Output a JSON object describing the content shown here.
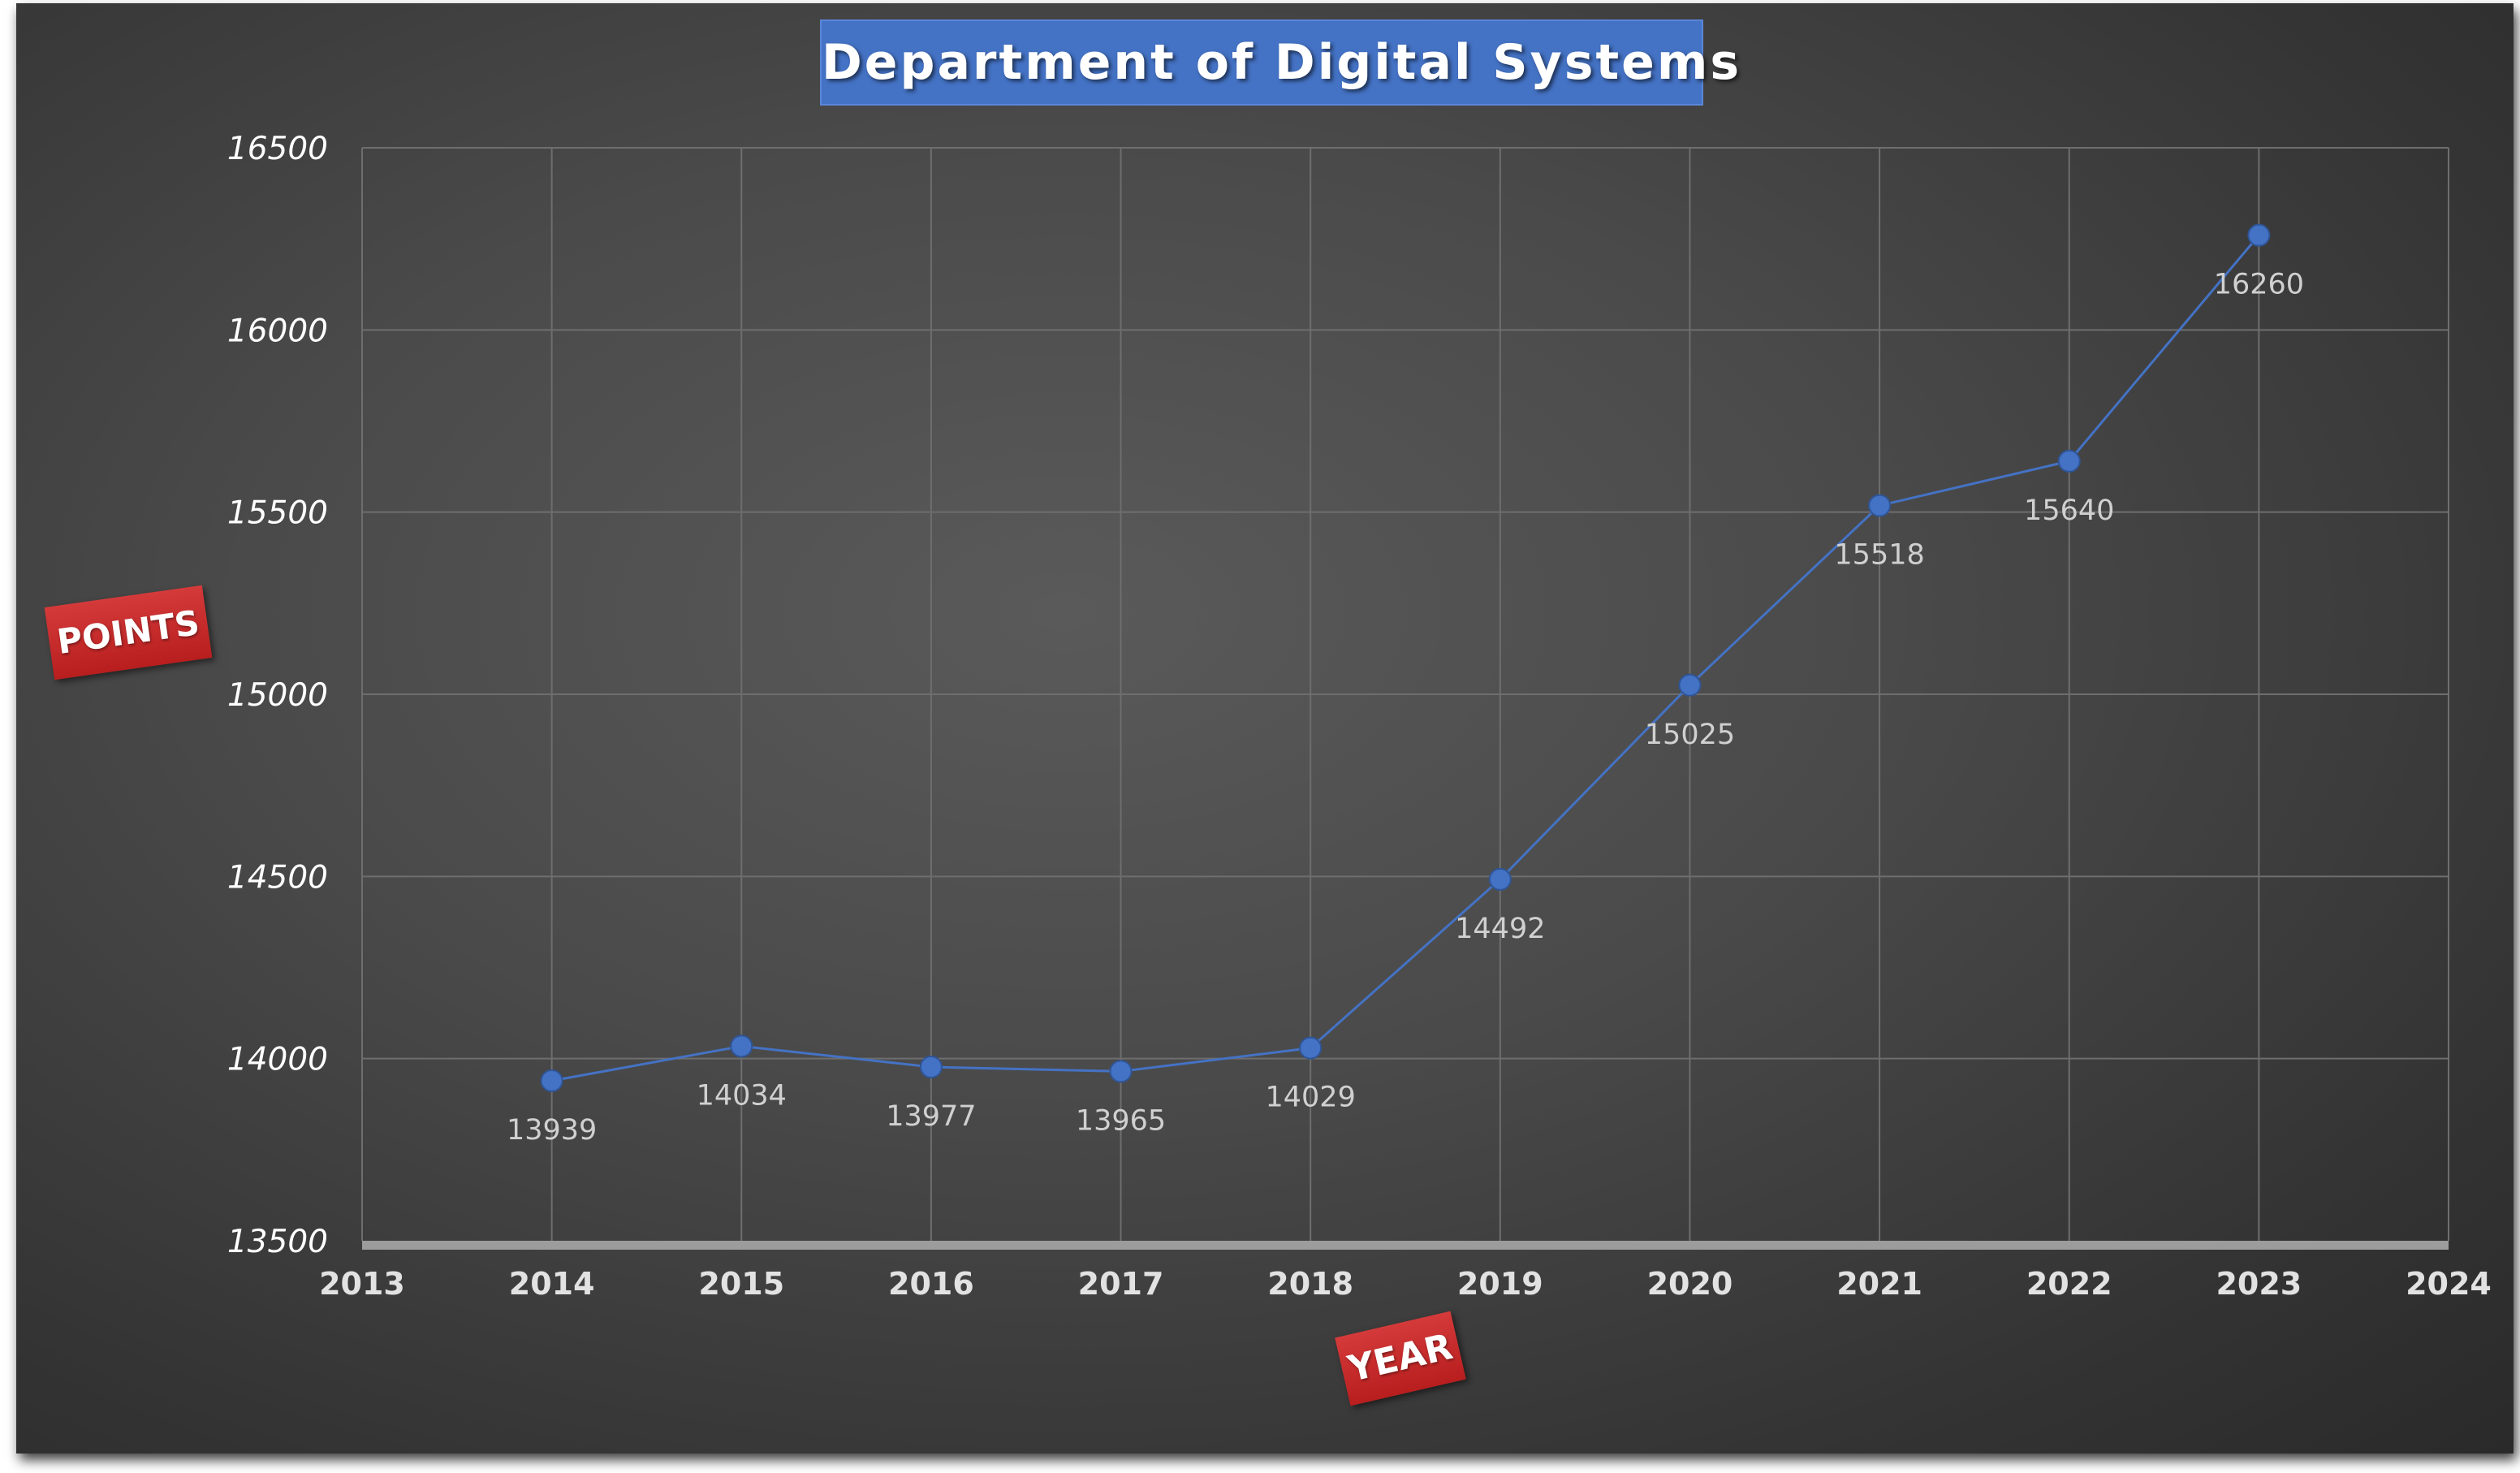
{
  "chart_data": {
    "type": "line",
    "title": "Department of Digital Systems",
    "xlabel": "YEAR",
    "ylabel": "POINTS",
    "x": [
      2014,
      2015,
      2016,
      2017,
      2018,
      2019,
      2020,
      2021,
      2022,
      2023
    ],
    "series": [
      {
        "values": [
          13939,
          14034,
          13977,
          13965,
          14029,
          14492,
          15025,
          15518,
          15640,
          16260
        ]
      }
    ],
    "xlim": [
      2013,
      2024
    ],
    "ylim": [
      13500,
      16500
    ],
    "xticks": [
      2013,
      2014,
      2015,
      2016,
      2017,
      2018,
      2019,
      2020,
      2021,
      2022,
      2023,
      2024
    ],
    "yticks": [
      13500,
      14000,
      14500,
      15000,
      15500,
      16000,
      16500
    ],
    "data_labels": true,
    "grid": true,
    "legend": "none",
    "colors": {
      "line": "#4472c4",
      "marker": "#4472c4",
      "title_background": "#4472c4",
      "axis_label_background": "#c0272d",
      "plot_background": "#4a4a4a"
    }
  }
}
